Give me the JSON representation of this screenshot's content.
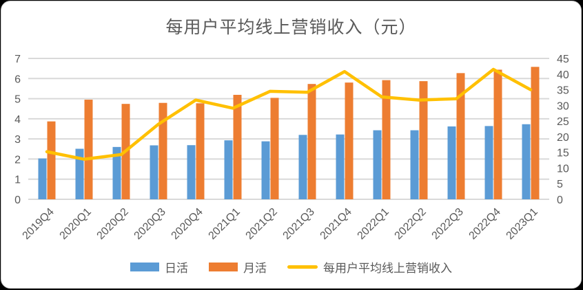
{
  "chart_data": {
    "type": "combo",
    "title": "每用户平均线上营销收入（元）",
    "categories": [
      "2019Q4",
      "2020Q1",
      "2020Q2",
      "2020Q3",
      "2020Q4",
      "2021Q1",
      "2021Q2",
      "2021Q3",
      "2021Q4",
      "2022Q1",
      "2022Q2",
      "2022Q3",
      "2022Q4",
      "2023Q1"
    ],
    "series": [
      {
        "name": "日活",
        "type": "bar",
        "axis": "left",
        "color": "#5B9BD5",
        "values": [
          2.03,
          2.51,
          2.6,
          2.68,
          2.69,
          2.93,
          2.88,
          3.2,
          3.22,
          3.43,
          3.43,
          3.62,
          3.64,
          3.73
        ]
      },
      {
        "name": "月活",
        "type": "bar",
        "axis": "left",
        "color": "#ED7D31",
        "values": [
          3.87,
          4.95,
          4.74,
          4.79,
          4.77,
          5.19,
          5.04,
          5.73,
          5.8,
          5.92,
          5.87,
          6.27,
          6.44,
          6.58
        ]
      },
      {
        "name": "每用户平均线上营销收入",
        "type": "line",
        "axis": "right",
        "color": "#FFC000",
        "values": [
          15.2,
          12.8,
          14.3,
          24.0,
          31.7,
          29.1,
          34.5,
          34.2,
          40.8,
          32.7,
          31.7,
          32.1,
          41.5,
          35.0
        ]
      }
    ],
    "left_axis": {
      "min": 0,
      "max": 7,
      "step": 1,
      "labels": [
        "0",
        "1",
        "2",
        "3",
        "4",
        "5",
        "6",
        "7"
      ]
    },
    "right_axis": {
      "min": 0,
      "max": 45,
      "step": 5,
      "labels": [
        "0",
        "5",
        "10",
        "15",
        "20",
        "25",
        "30",
        "35",
        "40",
        "45"
      ]
    },
    "grid": "horizontal-major-on",
    "legend_position": "bottom",
    "x_label_rotation": -45
  },
  "style_colors": {
    "text": "#595959",
    "gridline": "#D9D9D9",
    "card_background": "#FFFFFF",
    "frame_background": "#000000"
  }
}
